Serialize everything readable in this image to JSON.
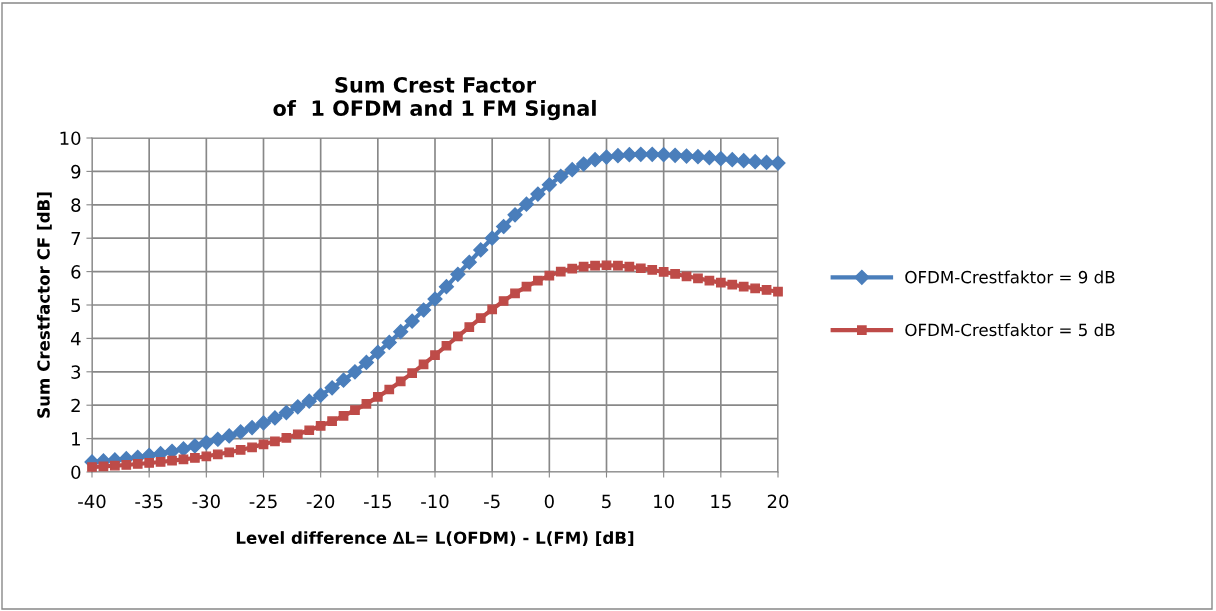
{
  "chart_data": {
    "type": "line",
    "title": "Sum Crest Factor\nof  1 OFDM and 1 FM Signal",
    "xlabel": "Level difference ∆L= L(OFDM) - L(FM) [dB]",
    "ylabel": "Sum Crestfactor CF [dB]",
    "x": [
      -40,
      -39,
      -38,
      -37,
      -36,
      -35,
      -34,
      -33,
      -32,
      -31,
      -30,
      -29,
      -28,
      -27,
      -26,
      -25,
      -24,
      -23,
      -22,
      -21,
      -20,
      -19,
      -18,
      -17,
      -16,
      -15,
      -14,
      -13,
      -12,
      -11,
      -10,
      -9,
      -8,
      -7,
      -6,
      -5,
      -4,
      -3,
      -2,
      -1,
      0,
      1,
      2,
      3,
      4,
      5,
      6,
      7,
      8,
      9,
      10,
      11,
      12,
      13,
      14,
      15,
      16,
      17,
      18,
      19,
      20
    ],
    "series": [
      {
        "name": "OFDM-Crestfaktor = 9 dB",
        "color": "#4a7ebb",
        "marker": "diamond",
        "values": [
          0.3,
          0.33,
          0.36,
          0.4,
          0.44,
          0.5,
          0.55,
          0.62,
          0.69,
          0.78,
          0.88,
          0.98,
          1.08,
          1.2,
          1.33,
          1.47,
          1.62,
          1.78,
          1.95,
          2.12,
          2.3,
          2.52,
          2.75,
          3.0,
          3.28,
          3.58,
          3.88,
          4.2,
          4.52,
          4.85,
          5.18,
          5.55,
          5.92,
          6.28,
          6.65,
          7.0,
          7.35,
          7.7,
          8.02,
          8.32,
          8.6,
          8.85,
          9.05,
          9.22,
          9.35,
          9.43,
          9.47,
          9.5,
          9.51,
          9.51,
          9.5,
          9.48,
          9.46,
          9.44,
          9.41,
          9.38,
          9.35,
          9.32,
          9.29,
          9.27,
          9.25
        ]
      },
      {
        "name": "OFDM-Crestfaktor = 5 dB",
        "color": "#be4b48",
        "marker": "square",
        "values": [
          0.15,
          0.17,
          0.19,
          0.21,
          0.24,
          0.27,
          0.3,
          0.34,
          0.38,
          0.42,
          0.47,
          0.53,
          0.59,
          0.66,
          0.74,
          0.83,
          0.92,
          1.02,
          1.13,
          1.25,
          1.38,
          1.52,
          1.68,
          1.85,
          2.04,
          2.25,
          2.47,
          2.71,
          2.96,
          3.22,
          3.5,
          3.78,
          4.06,
          4.34,
          4.61,
          4.87,
          5.12,
          5.35,
          5.55,
          5.73,
          5.88,
          6.0,
          6.09,
          6.15,
          6.18,
          6.19,
          6.18,
          6.15,
          6.1,
          6.05,
          5.99,
          5.93,
          5.86,
          5.8,
          5.73,
          5.67,
          5.61,
          5.55,
          5.5,
          5.45,
          5.4
        ]
      }
    ],
    "xlim": [
      -40,
      20
    ],
    "xticks": [
      -40,
      -35,
      -30,
      -25,
      -20,
      -15,
      -10,
      -5,
      0,
      5,
      10,
      15,
      20
    ],
    "ylim": [
      0,
      10
    ],
    "yticks": [
      0,
      1,
      2,
      3,
      4,
      5,
      6,
      7,
      8,
      9,
      10
    ],
    "grid": true,
    "legend": "right",
    "line_style": "solid"
  }
}
